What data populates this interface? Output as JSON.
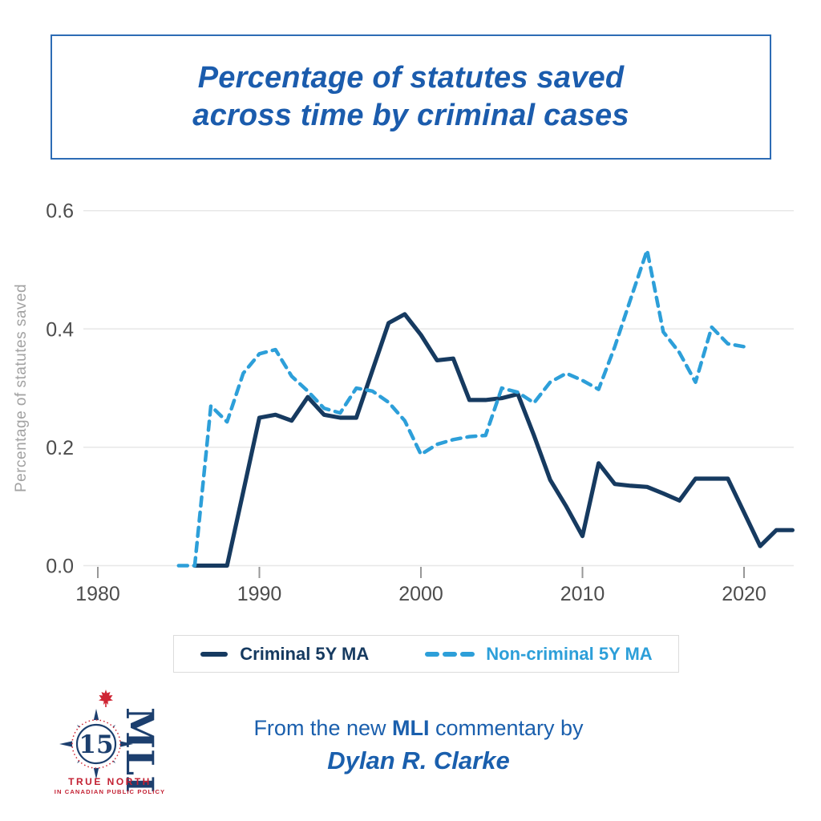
{
  "title": {
    "line1": "Percentage of statutes saved",
    "line2": "across time by criminal cases",
    "color": "#1b5cad",
    "border_color": "#2d6cb5"
  },
  "chart_data": {
    "type": "line",
    "title": "Percentage of statutes saved across time by criminal cases",
    "xlabel": "",
    "ylabel": "Percentage of statutes saved",
    "xlim": [
      1979,
      2024
    ],
    "ylim": [
      0.0,
      0.6
    ],
    "grid": true,
    "legend_position": "bottom",
    "x_ticks": [
      1980,
      1990,
      2000,
      2010,
      2020
    ],
    "y_ticks": [
      {
        "label": "0.0",
        "value": 0.0
      },
      {
        "label": "0.2",
        "value": 0.2
      },
      {
        "label": "0.4",
        "value": 0.4
      },
      {
        "label": "0.6",
        "value": 0.6
      }
    ],
    "series": [
      {
        "name": "Criminal 5Y MA",
        "color": "#163a60",
        "style": "solid",
        "years": [
          1986,
          1987,
          1988,
          1989,
          1990,
          1991,
          1992,
          1993,
          1994,
          1995,
          1996,
          1997,
          1998,
          1999,
          2000,
          2001,
          2002,
          2003,
          2004,
          2005,
          2006,
          2007,
          2008,
          2009,
          2010,
          2011,
          2012,
          2013,
          2014,
          2015,
          2016,
          2017,
          2018,
          2019,
          2020,
          2021,
          2022,
          2023
        ],
        "values": [
          0.0,
          0.0,
          0.0,
          0.125,
          0.25,
          0.255,
          0.245,
          0.285,
          0.255,
          0.25,
          0.25,
          0.33,
          0.41,
          0.425,
          0.39,
          0.347,
          0.35,
          0.28,
          0.28,
          0.283,
          0.29,
          0.22,
          0.145,
          0.1,
          0.05,
          0.173,
          0.138,
          0.135,
          0.133,
          0.122,
          0.11,
          0.147,
          0.147,
          0.147,
          0.09,
          0.033,
          0.06,
          0.06
        ]
      },
      {
        "name": "Non-criminal 5Y MA",
        "color": "#2d9fd9",
        "style": "dashed",
        "years": [
          1985,
          1986,
          1987,
          1988,
          1989,
          1990,
          1991,
          1992,
          1993,
          1994,
          1995,
          1996,
          1997,
          1998,
          1999,
          2000,
          2001,
          2002,
          2003,
          2004,
          2005,
          2006,
          2007,
          2008,
          2009,
          2010,
          2011,
          2012,
          2013,
          2014,
          2015,
          2016,
          2017,
          2018,
          2019,
          2020
        ],
        "values": [
          0.0,
          0.0,
          0.27,
          0.243,
          0.325,
          0.358,
          0.365,
          0.32,
          0.295,
          0.266,
          0.258,
          0.3,
          0.295,
          0.276,
          0.245,
          0.188,
          0.205,
          0.213,
          0.218,
          0.22,
          0.3,
          0.293,
          0.275,
          0.31,
          0.325,
          0.313,
          0.298,
          0.37,
          0.452,
          0.533,
          0.395,
          0.36,
          0.31,
          0.403,
          0.375,
          0.37
        ]
      }
    ]
  },
  "footer": {
    "part1": "From the new ",
    "brand": "MLI",
    "part2": " commentary by",
    "author": "Dylan R. Clarke",
    "color": "#1a5fad"
  },
  "logo": {
    "number": "15",
    "acronym": "MLI",
    "tagline_line1": "TRUE NORTH",
    "tagline_line2": "IN CANADIAN PUBLIC POLICY",
    "navy": "#1c3f6e",
    "red": "#c32032"
  }
}
